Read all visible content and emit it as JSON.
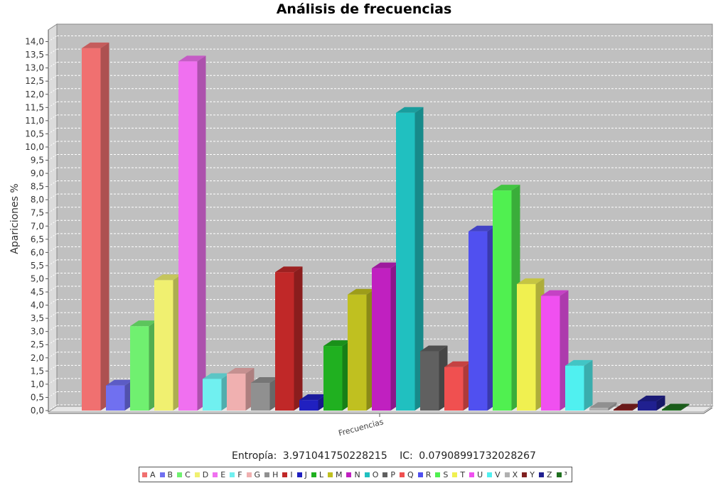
{
  "chart_data": {
    "type": "bar",
    "title": "Análisis de frecuencias",
    "xlabel": "",
    "ylabel": "Apariciones %",
    "ylim": [
      0,
      14.5
    ],
    "ytick_step": 0.5,
    "grid": true,
    "categories": [
      "Frecuencias"
    ],
    "series": [
      {
        "name": "A",
        "value": 13.75,
        "color": "#f07070"
      },
      {
        "name": "B",
        "value": 0.95,
        "color": "#7070f0"
      },
      {
        "name": "C",
        "value": 3.2,
        "color": "#70f070"
      },
      {
        "name": "D",
        "value": 4.95,
        "color": "#f0f070"
      },
      {
        "name": "E",
        "value": 13.25,
        "color": "#f070f0"
      },
      {
        "name": "F",
        "value": 1.2,
        "color": "#70f0f0"
      },
      {
        "name": "G",
        "value": 1.4,
        "color": "#f0b0b0"
      },
      {
        "name": "H",
        "value": 1.05,
        "color": "#909090"
      },
      {
        "name": "I",
        "value": 5.25,
        "color": "#c02828"
      },
      {
        "name": "J",
        "value": 0.4,
        "color": "#2020c0"
      },
      {
        "name": "L",
        "value": 2.45,
        "color": "#20b020"
      },
      {
        "name": "M",
        "value": 4.4,
        "color": "#c0c020"
      },
      {
        "name": "N",
        "value": 5.4,
        "color": "#c020c0"
      },
      {
        "name": "O",
        "value": 11.3,
        "color": "#20c0c0"
      },
      {
        "name": "P",
        "value": 2.25,
        "color": "#606060"
      },
      {
        "name": "Q",
        "value": 1.65,
        "color": "#f05050"
      },
      {
        "name": "R",
        "value": 6.8,
        "color": "#5050f0"
      },
      {
        "name": "S",
        "value": 8.35,
        "color": "#50f050"
      },
      {
        "name": "T",
        "value": 4.8,
        "color": "#f0f050"
      },
      {
        "name": "U",
        "value": 4.35,
        "color": "#f050f0"
      },
      {
        "name": "V",
        "value": 1.7,
        "color": "#50f0f0"
      },
      {
        "name": "X",
        "value": 0.1,
        "color": "#b0b0b0"
      },
      {
        "name": "Y",
        "value": 0.02,
        "color": "#802020"
      },
      {
        "name": "Z",
        "value": 0.35,
        "color": "#202090"
      },
      {
        "name": "³",
        "value": 0.02,
        "color": "#207020"
      }
    ]
  },
  "footer": {
    "entropy_label": "Entropía:",
    "entropy_value": "3.971041750228215",
    "ic_label": "IC:",
    "ic_value": "0.07908991732028267"
  }
}
